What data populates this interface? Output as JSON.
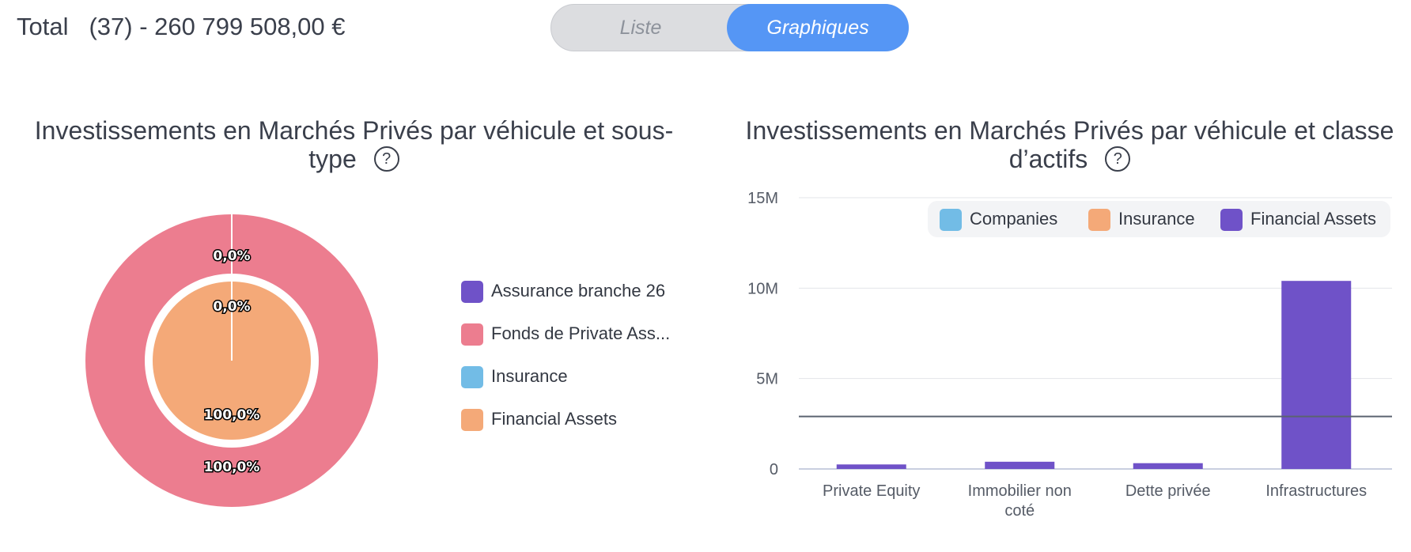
{
  "header": {
    "total_label": "Total",
    "total_value": "(37) - 260 799 508,00 €"
  },
  "view_toggle": {
    "list_label": "Liste",
    "charts_label": "Graphiques",
    "active": "charts"
  },
  "help_icon": "?",
  "chart_data": [
    {
      "type": "pie",
      "variant": "nested-donut",
      "title_line1": "Investissements en Marchés Privés par véhicule et sous-",
      "title_line2": "type",
      "legend": [
        {
          "name": "Assurance branche 26",
          "color": "#6f52c8"
        },
        {
          "name": "Fonds de Private Ass...",
          "color": "#ec7d8f"
        },
        {
          "name": "Insurance",
          "color": "#72bce6"
        },
        {
          "name": "Financial Assets",
          "color": "#f4a978"
        }
      ],
      "rings": [
        {
          "level": "outer",
          "slices": [
            {
              "name": "Assurance branche 26",
              "value": 0.0,
              "label": "0,0%",
              "color": "#6f52c8"
            },
            {
              "name": "Fonds de Private Ass...",
              "value": 100.0,
              "label": "100,0%",
              "color": "#ec7d8f"
            }
          ]
        },
        {
          "level": "inner",
          "slices": [
            {
              "name": "Insurance",
              "value": 0.0,
              "label": "0,0%",
              "color": "#72bce6"
            },
            {
              "name": "Financial Assets",
              "value": 100.0,
              "label": "100,0%",
              "color": "#f4a978"
            }
          ]
        }
      ]
    },
    {
      "type": "bar",
      "title_line1": "Investissements en Marchés Privés par véhicule et classe",
      "title_line2": "d’actifs",
      "categories": [
        "Private Equity",
        "Immobilier non coté",
        "Dette privée",
        "Infrastructures"
      ],
      "category_lines": [
        [
          "Private Equity"
        ],
        [
          "Immobilier non",
          "coté"
        ],
        [
          "Dette privée"
        ],
        [
          "Infrastructures"
        ]
      ],
      "series": [
        {
          "name": "Companies",
          "color": "#72bce6",
          "values": [
            0,
            0,
            0,
            0
          ]
        },
        {
          "name": "Insurance",
          "color": "#f4a978",
          "values": [
            0,
            0,
            0,
            0
          ]
        },
        {
          "name": "Financial Assets",
          "color": "#6f52c8",
          "values": [
            250000,
            400000,
            320000,
            10400000
          ]
        }
      ],
      "ylim": [
        0,
        15000000
      ],
      "yticks": [
        0,
        5000000,
        10000000,
        15000000
      ],
      "ytick_labels": [
        "0",
        "5M",
        "10M",
        "15M"
      ],
      "reference_line": 2900000,
      "reference_line_color": "#5b6370",
      "grid": true,
      "legend_position": "top-right",
      "xlabel": "",
      "ylabel": ""
    }
  ]
}
